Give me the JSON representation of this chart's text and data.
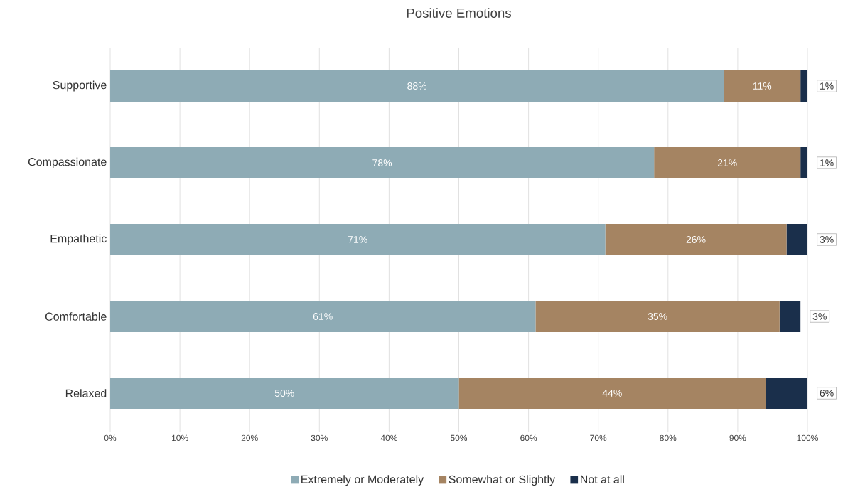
{
  "chart_data": {
    "type": "bar",
    "title": "Positive Emotions",
    "orientation": "horizontal",
    "stacked": true,
    "categories": [
      "Supportive",
      "Compassionate",
      "Empathetic",
      "Comfortable",
      "Relaxed"
    ],
    "series": [
      {
        "name": "Extremely or Moderately",
        "color": "#8eabb5",
        "values": [
          88,
          78,
          71,
          61,
          50
        ],
        "value_labels": [
          "88%",
          "78%",
          "71%",
          "61%",
          "50%"
        ]
      },
      {
        "name": "Somewhat or Slightly",
        "color": "#a58462",
        "values": [
          11,
          21,
          26,
          35,
          44
        ],
        "value_labels": [
          "11%",
          "21%",
          "26%",
          "35%",
          "44%"
        ]
      },
      {
        "name": "Not at all",
        "color": "#1a2f4b",
        "values": [
          1,
          1,
          3,
          3,
          6
        ],
        "value_labels": [
          "1%",
          "1%",
          "3%",
          "3%",
          "6%"
        ]
      }
    ],
    "xlim": [
      0,
      100
    ],
    "xticks": [
      {
        "value": 0,
        "label": "0%"
      },
      {
        "value": 10,
        "label": "10%"
      },
      {
        "value": 20,
        "label": "20%"
      },
      {
        "value": 30,
        "label": "30%"
      },
      {
        "value": 40,
        "label": "40%"
      },
      {
        "value": 50,
        "label": "50%"
      },
      {
        "value": 60,
        "label": "60%"
      },
      {
        "value": 70,
        "label": "70%"
      },
      {
        "value": 80,
        "label": "80%"
      },
      {
        "value": 90,
        "label": "90%"
      },
      {
        "value": 100,
        "label": "100%"
      }
    ],
    "grid": "x",
    "legend": "bottom"
  }
}
